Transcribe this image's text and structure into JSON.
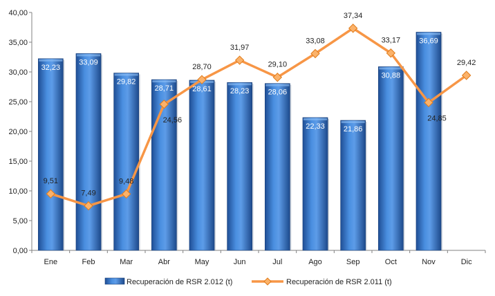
{
  "chart_data": {
    "type": "bar",
    "categories": [
      "Ene",
      "Feb",
      "Mar",
      "Abr",
      "May",
      "Jun",
      "Jul",
      "Ago",
      "Sep",
      "Oct",
      "Nov",
      "Dic"
    ],
    "series": [
      {
        "name": "Recuperación de RSR 2.012 (t)",
        "kind": "bar",
        "color": "#3a7fd0",
        "values": [
          32.23,
          33.09,
          29.82,
          28.71,
          28.61,
          28.23,
          28.06,
          22.33,
          21.86,
          30.88,
          36.69,
          null
        ],
        "labels": [
          "32,23",
          "33,09",
          "29,82",
          "28,71",
          "28,61",
          "28,23",
          "28,06",
          "22,33",
          "21,86",
          "30,88",
          "36,69",
          ""
        ]
      },
      {
        "name": "Recuperación de RSR 2.011 (t)",
        "kind": "line",
        "color": "#f79646",
        "values": [
          9.51,
          7.49,
          9.48,
          24.56,
          28.7,
          31.97,
          29.1,
          33.08,
          37.34,
          33.17,
          24.85,
          29.42
        ],
        "labels": [
          "9,51",
          "7,49",
          "9,48",
          "24,56",
          "28,70",
          "31,97",
          "29,10",
          "33,08",
          "37,34",
          "33,17",
          "24,85",
          "29,42"
        ]
      }
    ],
    "ylim": [
      0,
      40
    ],
    "yticks": [
      0,
      5,
      10,
      15,
      20,
      25,
      30,
      35,
      40
    ],
    "ytick_labels": [
      "0,00",
      "5,00",
      "10,00",
      "15,00",
      "20,00",
      "25,00",
      "30,00",
      "35,00",
      "40,00"
    ],
    "grid": false,
    "legend_position": "bottom",
    "title": "",
    "xlabel": "",
    "ylabel": ""
  }
}
